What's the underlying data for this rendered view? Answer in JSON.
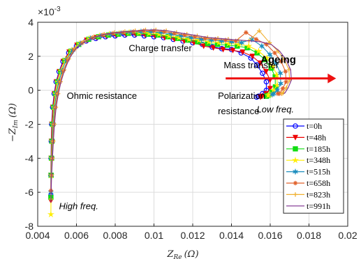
{
  "chart_data": {
    "type": "line",
    "title": "",
    "xlabel": "Z_Re (Ω)",
    "xlabel_main": "Z",
    "xlabel_sub": "Re",
    "xlabel_unit": "(Ω)",
    "ylabel": "−Z_Im (Ω)",
    "ylabel_main": "−Z",
    "ylabel_sub": "Im",
    "ylabel_unit": "(Ω)",
    "y_multiplier": "×10",
    "y_multiplier_exp": "-3",
    "xlim": [
      0.004,
      0.02
    ],
    "ylim": [
      -8,
      4
    ],
    "xticks": [
      0.004,
      0.006,
      0.008,
      0.01,
      0.012,
      0.014,
      0.016,
      0.018,
      0.02
    ],
    "xtick_labels": [
      "0.004",
      "0.006",
      "0.008",
      "0.01",
      "0.012",
      "0.014",
      "0.016",
      "0.018",
      "0.02"
    ],
    "yticks": [
      -8,
      -6,
      -4,
      -2,
      0,
      2,
      4
    ],
    "ytick_labels": [
      "-8",
      "-6",
      "-4",
      "-2",
      "0",
      "2",
      "4"
    ],
    "grid": true,
    "legend_position": "lower-right",
    "annotations": [
      {
        "text": "Charge transfer",
        "x": 0.0087,
        "y": 2.3,
        "style": "normal"
      },
      {
        "text": "Mass transfer",
        "x": 0.0136,
        "y": 1.3,
        "style": "normal"
      },
      {
        "text": "Ohmic resistance",
        "x": 0.0055,
        "y": -0.5,
        "style": "normal"
      },
      {
        "text": "Polarization",
        "x": 0.0133,
        "y": -0.5,
        "style": "normal"
      },
      {
        "text": "resistance",
        "x": 0.0133,
        "y": -1.4,
        "style": "normal"
      },
      {
        "text": "Low freq.",
        "x": 0.0153,
        "y": -1.3,
        "style": "italic"
      },
      {
        "text": "High freq.",
        "x": 0.0051,
        "y": -7.0,
        "style": "italic"
      },
      {
        "text": "Ageing",
        "x": 0.0155,
        "y": 1.6,
        "style": "bold"
      }
    ],
    "arrow": {
      "x_start": 0.0137,
      "x_end": 0.0194,
      "y": 0.7,
      "color": "#ee1111"
    },
    "series": [
      {
        "name": "t=0h",
        "color": "#0000ff",
        "marker": "circle",
        "x_offset": 0.0,
        "y_tail": -6.2,
        "x": [
          0.00468,
          0.00468,
          0.00469,
          0.0047,
          0.00472,
          0.00477,
          0.00485,
          0.00495,
          0.0051,
          0.0053,
          0.0056,
          0.006,
          0.0065,
          0.007,
          0.0075,
          0.008,
          0.0085,
          0.009,
          0.0095,
          0.01,
          0.0105,
          0.011,
          0.0115,
          0.012,
          0.0125,
          0.013,
          0.0135,
          0.014,
          0.0145,
          0.015,
          0.0153,
          0.0156,
          0.0158,
          0.0158,
          0.0156,
          0.0154,
          0.0153
        ],
        "y": [
          -6.2,
          -5.0,
          -4.0,
          -3.0,
          -2.0,
          -1.0,
          -0.2,
          0.5,
          1.1,
          1.7,
          2.2,
          2.6,
          2.9,
          3.05,
          3.15,
          3.2,
          3.25,
          3.25,
          3.2,
          3.15,
          3.1,
          3.0,
          2.9,
          2.8,
          2.7,
          2.55,
          2.45,
          2.4,
          2.2,
          1.9,
          1.5,
          1.0,
          0.5,
          0.0,
          -0.2,
          -0.35,
          -0.4
        ]
      },
      {
        "name": "t=48h",
        "color": "#ee0000",
        "marker": "triangle-down",
        "x_offset": 0.0001,
        "y_tail": -6.5,
        "x": [
          0.00468,
          0.00468,
          0.00469,
          0.0047,
          0.00472,
          0.00477,
          0.00485,
          0.00495,
          0.0051,
          0.0053,
          0.0056,
          0.006,
          0.0065,
          0.007,
          0.0075,
          0.008,
          0.0085,
          0.009,
          0.0095,
          0.01,
          0.0105,
          0.011,
          0.0115,
          0.012,
          0.0125,
          0.013,
          0.0135,
          0.014,
          0.0145,
          0.015,
          0.0154,
          0.0157,
          0.0159,
          0.0159,
          0.0157,
          0.0155,
          0.0154
        ],
        "y": [
          -6.5,
          -5.0,
          -4.0,
          -3.0,
          -2.0,
          -1.0,
          -0.2,
          0.5,
          1.1,
          1.7,
          2.25,
          2.65,
          2.95,
          3.1,
          3.2,
          3.25,
          3.3,
          3.3,
          3.25,
          3.2,
          3.1,
          3.0,
          2.9,
          2.8,
          2.6,
          2.5,
          2.4,
          2.35,
          2.25,
          2.0,
          1.6,
          1.1,
          0.6,
          0.1,
          -0.2,
          -0.35,
          -0.4
        ]
      },
      {
        "name": "t=185h",
        "color": "#11dd11",
        "marker": "square",
        "x_offset": 0.0004,
        "y_tail": -6.3,
        "x": [
          0.00468,
          0.00468,
          0.00469,
          0.0047,
          0.00472,
          0.00477,
          0.00485,
          0.00495,
          0.0051,
          0.0053,
          0.0056,
          0.006,
          0.0065,
          0.007,
          0.0075,
          0.008,
          0.0085,
          0.009,
          0.0095,
          0.01,
          0.0105,
          0.011,
          0.0115,
          0.012,
          0.0125,
          0.013,
          0.0135,
          0.014,
          0.0145,
          0.015,
          0.0154,
          0.0157,
          0.0159,
          0.0159,
          0.0157,
          0.0155,
          0.0154
        ],
        "y": [
          -6.3,
          -5.0,
          -4.0,
          -3.0,
          -2.0,
          -1.0,
          -0.2,
          0.5,
          1.1,
          1.75,
          2.3,
          2.7,
          3.0,
          3.15,
          3.25,
          3.3,
          3.35,
          3.35,
          3.3,
          3.25,
          3.15,
          3.05,
          2.95,
          2.85,
          2.75,
          2.7,
          2.65,
          2.6,
          2.5,
          2.2,
          1.8,
          1.3,
          0.8,
          0.2,
          -0.1,
          -0.3,
          -0.35
        ]
      },
      {
        "name": "t=348h",
        "color": "#ffee00",
        "marker": "star",
        "x_offset": 0.0005,
        "y_tail": -7.3,
        "x": [
          0.00468,
          0.00468,
          0.00469,
          0.0047,
          0.00472,
          0.00477,
          0.00485,
          0.00495,
          0.0051,
          0.0053,
          0.0056,
          0.006,
          0.0065,
          0.007,
          0.0075,
          0.008,
          0.0085,
          0.009,
          0.0095,
          0.01,
          0.0105,
          0.011,
          0.0115,
          0.012,
          0.0125,
          0.013,
          0.0135,
          0.014,
          0.0145,
          0.015,
          0.0154,
          0.0157,
          0.0159,
          0.0159,
          0.0157,
          0.0155,
          0.0154
        ],
        "y": [
          -7.3,
          -5.0,
          -4.0,
          -3.0,
          -2.0,
          -1.0,
          -0.2,
          0.5,
          1.15,
          1.8,
          2.35,
          2.75,
          3.05,
          3.2,
          3.3,
          3.35,
          3.4,
          3.4,
          3.35,
          3.3,
          3.2,
          3.1,
          3.0,
          2.95,
          2.85,
          2.8,
          2.75,
          2.7,
          2.6,
          2.3,
          1.9,
          1.4,
          0.9,
          0.3,
          0.0,
          -0.25,
          -0.3
        ]
      },
      {
        "name": "t=515h",
        "color": "#1f8fbf",
        "marker": "hexagram",
        "x_offset": 0.0007,
        "y_tail": -6.0,
        "x": [
          0.00468,
          0.00468,
          0.00469,
          0.0047,
          0.00472,
          0.00477,
          0.00485,
          0.00495,
          0.0051,
          0.0053,
          0.0056,
          0.006,
          0.0065,
          0.007,
          0.0075,
          0.008,
          0.0085,
          0.009,
          0.0095,
          0.01,
          0.0105,
          0.011,
          0.0115,
          0.012,
          0.0125,
          0.013,
          0.0135,
          0.014,
          0.0145,
          0.015,
          0.0154,
          0.0157,
          0.0159,
          0.0159,
          0.0157,
          0.0155,
          0.0154
        ],
        "y": [
          -6.0,
          -5.0,
          -4.0,
          -3.0,
          -2.0,
          -1.0,
          -0.2,
          0.5,
          1.15,
          1.8,
          2.35,
          2.75,
          3.05,
          3.2,
          3.3,
          3.35,
          3.4,
          3.45,
          3.45,
          3.4,
          3.3,
          3.2,
          3.1,
          3.0,
          2.95,
          2.9,
          2.85,
          2.8,
          3.0,
          2.6,
          2.1,
          1.6,
          1.0,
          0.4,
          0.0,
          -0.2,
          -0.25
        ]
      },
      {
        "name": "t=658h",
        "color": "#e0602a",
        "marker": "asterisk",
        "x_offset": 0.001,
        "y_tail": -5.9,
        "x": [
          0.00468,
          0.00468,
          0.00469,
          0.0047,
          0.00472,
          0.00477,
          0.00485,
          0.00495,
          0.0051,
          0.0053,
          0.0056,
          0.006,
          0.0065,
          0.007,
          0.0075,
          0.008,
          0.0085,
          0.009,
          0.0095,
          0.01,
          0.0105,
          0.011,
          0.0115,
          0.012,
          0.0125,
          0.013,
          0.0135,
          0.014,
          0.0145,
          0.015,
          0.0154,
          0.0157,
          0.0159,
          0.0159,
          0.0157,
          0.0155,
          0.0154
        ],
        "y": [
          -5.9,
          -5.0,
          -4.0,
          -3.0,
          -2.0,
          -1.0,
          -0.2,
          0.5,
          1.15,
          1.8,
          2.4,
          2.8,
          3.1,
          3.25,
          3.35,
          3.4,
          3.45,
          3.5,
          3.5,
          3.45,
          3.35,
          3.25,
          3.15,
          3.05,
          3.0,
          2.95,
          2.9,
          3.4,
          3.0,
          2.7,
          2.2,
          1.7,
          1.1,
          0.5,
          0.1,
          -0.2,
          -0.2
        ]
      },
      {
        "name": "t=823h",
        "color": "#f0b030",
        "marker": "plus",
        "x_offset": 0.0012,
        "y_tail": -6.4,
        "x": [
          0.00468,
          0.00468,
          0.00469,
          0.0047,
          0.00472,
          0.00477,
          0.00485,
          0.00495,
          0.0051,
          0.0053,
          0.0056,
          0.006,
          0.0065,
          0.007,
          0.0075,
          0.008,
          0.0085,
          0.009,
          0.0095,
          0.01,
          0.0105,
          0.011,
          0.0115,
          0.012,
          0.0125,
          0.013,
          0.0135,
          0.014,
          0.0145,
          0.015,
          0.0154,
          0.0157,
          0.0159,
          0.0159,
          0.0157,
          0.0155,
          0.0154
        ],
        "y": [
          -6.4,
          -5.0,
          -4.0,
          -3.0,
          -2.0,
          -1.0,
          -0.2,
          0.5,
          1.2,
          1.85,
          2.45,
          2.85,
          3.15,
          3.3,
          3.4,
          3.45,
          3.5,
          3.55,
          3.55,
          3.5,
          3.4,
          3.3,
          3.2,
          3.1,
          3.05,
          3.0,
          2.95,
          2.9,
          3.5,
          2.8,
          2.3,
          1.8,
          1.2,
          0.6,
          0.15,
          -0.15,
          -0.2
        ]
      },
      {
        "name": "t=991h",
        "color": "#7b2d8e",
        "marker": "none",
        "x_offset": 0.0013,
        "y_tail": -6.6,
        "x": [
          0.00468,
          0.00468,
          0.00469,
          0.0047,
          0.00472,
          0.00477,
          0.00485,
          0.00495,
          0.0051,
          0.0053,
          0.0056,
          0.006,
          0.0065,
          0.007,
          0.0075,
          0.008,
          0.0085,
          0.009,
          0.0095,
          0.01,
          0.0105,
          0.011,
          0.0115,
          0.012,
          0.0125,
          0.013,
          0.0135,
          0.014,
          0.0145,
          0.015,
          0.0154,
          0.0157,
          0.0159,
          0.0159,
          0.0157,
          0.0155,
          0.0154
        ],
        "y": [
          -6.6,
          -5.0,
          -4.0,
          -3.0,
          -2.0,
          -1.0,
          -0.2,
          0.5,
          1.2,
          1.85,
          2.45,
          2.85,
          3.15,
          3.3,
          3.4,
          3.45,
          3.5,
          3.55,
          3.55,
          3.5,
          3.4,
          3.3,
          3.2,
          3.1,
          3.05,
          3.0,
          2.95,
          2.9,
          2.85,
          2.7,
          2.3,
          1.8,
          1.2,
          0.6,
          0.15,
          -0.15,
          -0.2
        ]
      }
    ]
  }
}
